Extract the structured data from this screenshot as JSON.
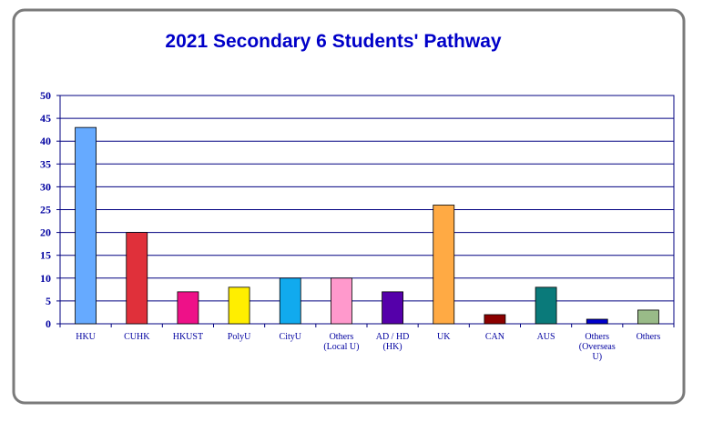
{
  "chart_data": {
    "type": "bar",
    "title": "2021 Secondary 6 Students' Pathway",
    "xlabel": "",
    "ylabel": "",
    "ylim": [
      0,
      50
    ],
    "yticks": [
      0,
      5,
      10,
      15,
      20,
      25,
      30,
      35,
      40,
      45,
      50
    ],
    "grid": true,
    "categories": [
      [
        "HKU"
      ],
      [
        "CUHK"
      ],
      [
        "HKUST"
      ],
      [
        "PolyU"
      ],
      [
        "CityU"
      ],
      [
        "Others",
        "(Local U)"
      ],
      [
        "AD / HD",
        "(HK)"
      ],
      [
        "UK"
      ],
      [
        "CAN"
      ],
      [
        "AUS"
      ],
      [
        "Others",
        "(Overseas",
        "U)"
      ],
      [
        "Others"
      ]
    ],
    "values": [
      43,
      20,
      7,
      8,
      10,
      10,
      7,
      26,
      2,
      8,
      1,
      3
    ],
    "colors": [
      "#66aaff",
      "#e0303a",
      "#ee1188",
      "#ffee00",
      "#11aaee",
      "#ff99cc",
      "#5500aa",
      "#ffaa44",
      "#8b0000",
      "#0a7a7a",
      "#0000cc",
      "#99bb88"
    ]
  },
  "style": {
    "title_color": "#0000c8",
    "axis_color": "#000080",
    "frame_border": "#777777"
  }
}
